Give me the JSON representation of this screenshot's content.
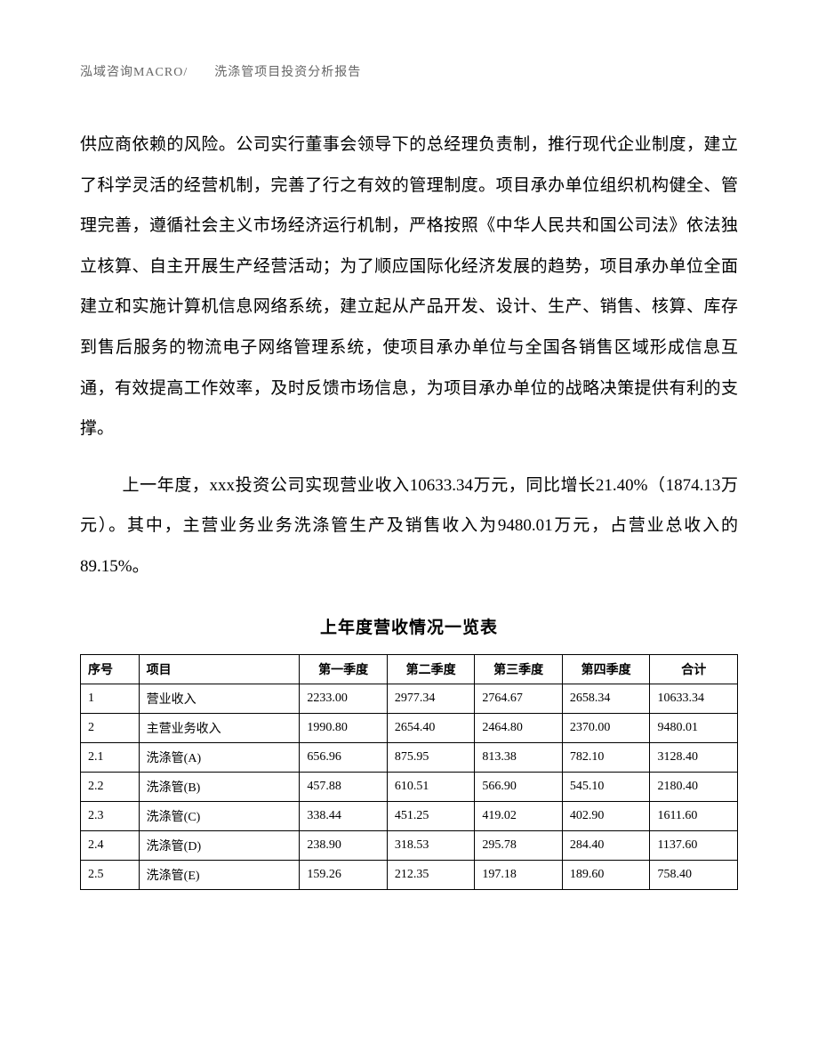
{
  "header": "泓域咨询MACRO/　　洗涤管项目投资分析报告",
  "paragraph1": "供应商依赖的风险。公司实行董事会领导下的总经理负责制，推行现代企业制度，建立了科学灵活的经营机制，完善了行之有效的管理制度。项目承办单位组织机构健全、管理完善，遵循社会主义市场经济运行机制，严格按照《中华人民共和国公司法》依法独立核算、自主开展生产经营活动；为了顺应国际化经济发展的趋势，项目承办单位全面建立和实施计算机信息网络系统，建立起从产品开发、设计、生产、销售、核算、库存到售后服务的物流电子网络管理系统，使项目承办单位与全国各销售区域形成信息互通，有效提高工作效率，及时反馈市场信息，为项目承办单位的战略决策提供有利的支撑。",
  "paragraph2": "上一年度，xxx投资公司实现营业收入10633.34万元，同比增长21.40%（1874.13万元）。其中，主营业务业务洗涤管生产及销售收入为9480.01万元，占营业总收入的89.15%。",
  "table": {
    "title": "上年度营收情况一览表",
    "columns": [
      "序号",
      "项目",
      "第一季度",
      "第二季度",
      "第三季度",
      "第四季度",
      "合计"
    ],
    "rows": [
      [
        "1",
        "营业收入",
        "2233.00",
        "2977.34",
        "2764.67",
        "2658.34",
        "10633.34"
      ],
      [
        "2",
        "主营业务收入",
        "1990.80",
        "2654.40",
        "2464.80",
        "2370.00",
        "9480.01"
      ],
      [
        "2.1",
        "洗涤管(A)",
        "656.96",
        "875.95",
        "813.38",
        "782.10",
        "3128.40"
      ],
      [
        "2.2",
        "洗涤管(B)",
        "457.88",
        "610.51",
        "566.90",
        "545.10",
        "2180.40"
      ],
      [
        "2.3",
        "洗涤管(C)",
        "338.44",
        "451.25",
        "419.02",
        "402.90",
        "1611.60"
      ],
      [
        "2.4",
        "洗涤管(D)",
        "238.90",
        "318.53",
        "295.78",
        "284.40",
        "1137.60"
      ],
      [
        "2.5",
        "洗涤管(E)",
        "159.26",
        "212.35",
        "197.18",
        "189.60",
        "758.40"
      ]
    ]
  }
}
